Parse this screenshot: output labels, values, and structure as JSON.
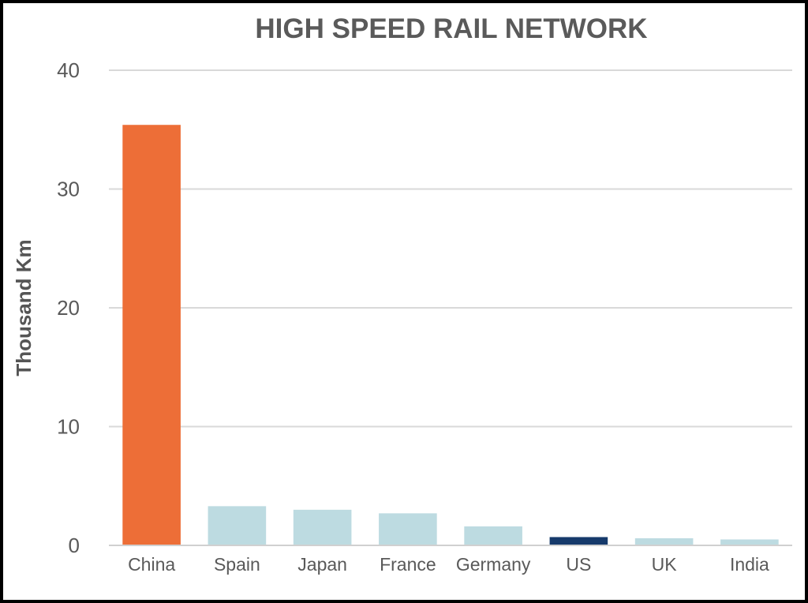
{
  "chart_data": {
    "type": "bar",
    "title": "HIGH SPEED RAIL NETWORK",
    "xlabel": "",
    "ylabel": "Thousand Km",
    "categories": [
      "China",
      "Spain",
      "Japan",
      "France",
      "Germany",
      "US",
      "UK",
      "India"
    ],
    "values": [
      35.4,
      3.3,
      3.0,
      2.7,
      1.6,
      0.7,
      0.6,
      0.5
    ],
    "colors": [
      "#ed6e37",
      "#bddbe1",
      "#bddbe1",
      "#bddbe1",
      "#bddbe1",
      "#163a6b",
      "#bddbe1",
      "#bddbe1"
    ],
    "ylim": [
      0,
      40
    ],
    "yticks": [
      0,
      10,
      20,
      30,
      40
    ],
    "grid": true,
    "legend": "none"
  }
}
